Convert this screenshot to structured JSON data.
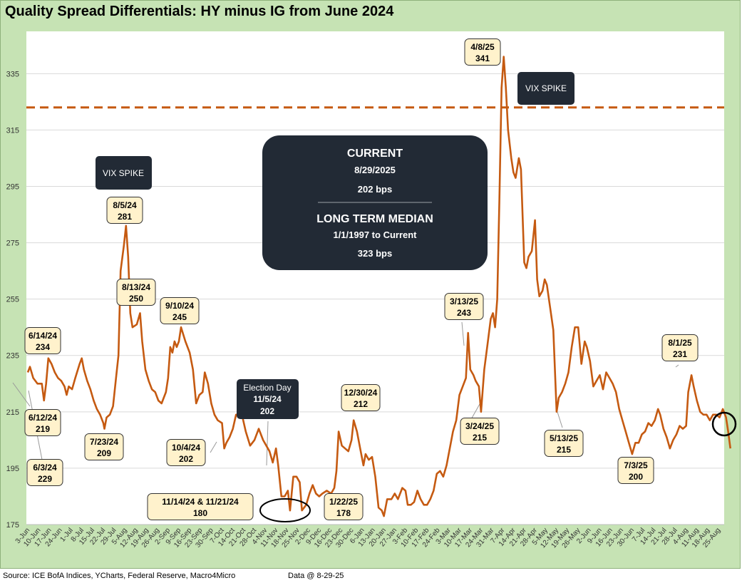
{
  "footer": {
    "source": "Source: ICE BofA Indices, YCharts, Federal Reserve, Macro4Micro",
    "data_as_of": "Data @ 8-29-25"
  },
  "colors": {
    "line": "#c55a11",
    "background": "#c6e3b4",
    "plot": "#ffffff",
    "dark_box": "#222a35",
    "callout_fill": "#fff2cc"
  },
  "chart_data": {
    "type": "line",
    "title": "Quality Spread Differentials: HY minus IG from June 2024",
    "ylabel": "",
    "xlabel": "",
    "ylim": [
      175,
      350
    ],
    "yticks": [
      175,
      195,
      215,
      235,
      255,
      275,
      295,
      315,
      335
    ],
    "grid": true,
    "x_tick_labels": [
      "3-Jun",
      "10-Jun",
      "17-Jun",
      "24-Jun",
      "1-Jul",
      "8-Jul",
      "15-Jul",
      "22-Jul",
      "29-Jul",
      "5-Aug",
      "12-Aug",
      "19-Aug",
      "26-Aug",
      "2-Sep",
      "9-Sep",
      "16-Sep",
      "23-Sep",
      "30-Sep",
      "7-Oct",
      "14-Oct",
      "21-Oct",
      "28-Oct",
      "4-Nov",
      "11-Nov",
      "18-Nov",
      "25-Nov",
      "2-Dec",
      "9-Dec",
      "16-Dec",
      "23-Dec",
      "30-Dec",
      "6-Jan",
      "13-Jan",
      "20-Jan",
      "27-Jan",
      "3-Feb",
      "10-Feb",
      "17-Feb",
      "24-Feb",
      "3-Mar",
      "10-Mar",
      "17-Mar",
      "24-Mar",
      "31-Mar",
      "7-Apr",
      "14-Apr",
      "21-Apr",
      "28-Apr",
      "5-May",
      "12-May",
      "19-May",
      "26-May",
      "2-Jun",
      "9-Jun",
      "16-Jun",
      "23-Jun",
      "30-Jun",
      "7-Jul",
      "14-Jul",
      "21-Jul",
      "28-Jul",
      "4-Aug",
      "11-Aug",
      "18-Aug",
      "25-Aug"
    ],
    "reference_line": {
      "name": "Long term median",
      "value": 323
    },
    "series": [
      {
        "name": "HY minus IG (bps)",
        "points": [
          [
            0,
            229
          ],
          [
            0.2,
            231
          ],
          [
            0.5,
            227
          ],
          [
            0.9,
            225
          ],
          [
            1.3,
            225
          ],
          [
            1.5,
            219
          ],
          [
            1.7,
            225
          ],
          [
            1.9,
            234
          ],
          [
            2.2,
            232
          ],
          [
            2.5,
            229
          ],
          [
            2.8,
            227
          ],
          [
            3.1,
            226
          ],
          [
            3.4,
            224
          ],
          [
            3.6,
            221
          ],
          [
            3.8,
            224
          ],
          [
            4.1,
            223
          ],
          [
            4.4,
            227
          ],
          [
            4.8,
            232
          ],
          [
            5.0,
            234
          ],
          [
            5.2,
            230
          ],
          [
            5.5,
            226
          ],
          [
            5.8,
            223
          ],
          [
            6.1,
            219
          ],
          [
            6.4,
            216
          ],
          [
            6.7,
            214
          ],
          [
            7.0,
            211
          ],
          [
            7.1,
            209
          ],
          [
            7.3,
            213
          ],
          [
            7.6,
            214
          ],
          [
            7.9,
            217
          ],
          [
            8.2,
            228
          ],
          [
            8.4,
            235
          ],
          [
            8.6,
            265
          ],
          [
            8.9,
            274
          ],
          [
            9.1,
            281
          ],
          [
            9.3,
            270
          ],
          [
            9.5,
            250
          ],
          [
            9.7,
            245
          ],
          [
            10.1,
            246
          ],
          [
            10.4,
            250
          ],
          [
            10.6,
            240
          ],
          [
            10.9,
            230
          ],
          [
            11.2,
            226
          ],
          [
            11.5,
            223
          ],
          [
            11.8,
            222
          ],
          [
            12.1,
            219
          ],
          [
            12.4,
            218
          ],
          [
            12.8,
            222
          ],
          [
            13.0,
            227
          ],
          [
            13.2,
            238
          ],
          [
            13.4,
            236
          ],
          [
            13.6,
            240
          ],
          [
            13.8,
            238
          ],
          [
            14.0,
            240
          ],
          [
            14.2,
            245
          ],
          [
            14.6,
            240
          ],
          [
            15.0,
            236
          ],
          [
            15.3,
            230
          ],
          [
            15.6,
            218
          ],
          [
            15.9,
            221
          ],
          [
            16.2,
            222
          ],
          [
            16.4,
            229
          ],
          [
            16.7,
            225
          ],
          [
            17.0,
            218
          ],
          [
            17.3,
            214
          ],
          [
            17.6,
            212
          ],
          [
            18.0,
            211
          ],
          [
            18.2,
            202
          ],
          [
            18.4,
            204
          ],
          [
            18.7,
            206
          ],
          [
            19.0,
            209
          ],
          [
            19.3,
            214
          ],
          [
            19.6,
            214
          ],
          [
            19.9,
            213
          ],
          [
            20.2,
            208
          ],
          [
            20.6,
            203
          ],
          [
            21.0,
            205
          ],
          [
            21.4,
            209
          ],
          [
            21.8,
            205
          ],
          [
            22.1,
            203
          ],
          [
            22.4,
            201
          ],
          [
            22.7,
            197
          ],
          [
            23.0,
            202
          ],
          [
            23.2,
            196
          ],
          [
            23.5,
            185
          ],
          [
            23.8,
            185
          ],
          [
            24.1,
            187
          ],
          [
            24.3,
            180
          ],
          [
            24.6,
            192
          ],
          [
            24.9,
            192
          ],
          [
            25.2,
            190
          ],
          [
            25.4,
            180
          ],
          [
            25.8,
            182
          ],
          [
            26.1,
            186
          ],
          [
            26.4,
            189
          ],
          [
            26.7,
            186
          ],
          [
            27.0,
            185
          ],
          [
            27.3,
            186
          ],
          [
            27.7,
            187
          ],
          [
            28.1,
            186
          ],
          [
            28.4,
            188
          ],
          [
            28.6,
            194
          ],
          [
            28.8,
            208
          ],
          [
            29.1,
            203
          ],
          [
            29.4,
            202
          ],
          [
            29.7,
            201
          ],
          [
            30.0,
            205
          ],
          [
            30.2,
            212
          ],
          [
            30.5,
            208
          ],
          [
            30.8,
            202
          ],
          [
            31.1,
            196
          ],
          [
            31.3,
            200
          ],
          [
            31.6,
            198
          ],
          [
            31.9,
            199
          ],
          [
            32.2,
            192
          ],
          [
            32.5,
            181
          ],
          [
            32.8,
            180
          ],
          [
            33.0,
            178
          ],
          [
            33.3,
            184
          ],
          [
            33.7,
            184
          ],
          [
            34.0,
            186
          ],
          [
            34.3,
            184
          ],
          [
            34.7,
            188
          ],
          [
            35.0,
            187
          ],
          [
            35.2,
            182
          ],
          [
            35.5,
            182
          ],
          [
            35.8,
            183
          ],
          [
            36.1,
            187
          ],
          [
            36.4,
            184
          ],
          [
            36.7,
            182
          ],
          [
            37.0,
            182
          ],
          [
            37.3,
            184
          ],
          [
            37.6,
            187
          ],
          [
            37.9,
            193
          ],
          [
            38.2,
            194
          ],
          [
            38.5,
            192
          ],
          [
            38.8,
            196
          ],
          [
            39.1,
            202
          ],
          [
            39.4,
            208
          ],
          [
            39.7,
            212
          ],
          [
            40.0,
            221
          ],
          [
            40.3,
            224
          ],
          [
            40.6,
            227
          ],
          [
            40.8,
            243
          ],
          [
            41.0,
            230
          ],
          [
            41.3,
            228
          ],
          [
            41.5,
            226
          ],
          [
            41.8,
            224
          ],
          [
            42.0,
            215
          ],
          [
            42.3,
            230
          ],
          [
            42.6,
            239
          ],
          [
            42.9,
            248
          ],
          [
            43.1,
            250
          ],
          [
            43.3,
            245
          ],
          [
            43.5,
            255
          ],
          [
            43.7,
            290
          ],
          [
            43.9,
            330
          ],
          [
            44.1,
            341
          ],
          [
            44.3,
            330
          ],
          [
            44.5,
            315
          ],
          [
            44.8,
            305
          ],
          [
            45.0,
            300
          ],
          [
            45.2,
            298
          ],
          [
            45.5,
            305
          ],
          [
            45.7,
            301
          ],
          [
            46.0,
            268
          ],
          [
            46.2,
            266
          ],
          [
            46.4,
            270
          ],
          [
            46.7,
            272
          ],
          [
            47.0,
            283
          ],
          [
            47.2,
            262
          ],
          [
            47.4,
            256
          ],
          [
            47.7,
            258
          ],
          [
            47.9,
            262
          ],
          [
            48.1,
            260
          ],
          [
            48.4,
            252
          ],
          [
            48.7,
            244
          ],
          [
            49.0,
            215
          ],
          [
            49.2,
            220
          ],
          [
            49.5,
            222
          ],
          [
            49.8,
            225
          ],
          [
            50.1,
            229
          ],
          [
            50.4,
            238
          ],
          [
            50.7,
            245
          ],
          [
            51.0,
            245
          ],
          [
            51.3,
            232
          ],
          [
            51.6,
            240
          ],
          [
            51.8,
            238
          ],
          [
            52.1,
            233
          ],
          [
            52.4,
            224
          ],
          [
            52.7,
            226
          ],
          [
            53.0,
            228
          ],
          [
            53.3,
            223
          ],
          [
            53.6,
            229
          ],
          [
            53.9,
            227
          ],
          [
            54.2,
            225
          ],
          [
            54.5,
            222
          ],
          [
            54.8,
            216
          ],
          [
            55.1,
            212
          ],
          [
            55.4,
            208
          ],
          [
            55.7,
            204
          ],
          [
            56.0,
            200
          ],
          [
            56.3,
            204
          ],
          [
            56.6,
            204
          ],
          [
            56.9,
            207
          ],
          [
            57.2,
            208
          ],
          [
            57.5,
            211
          ],
          [
            57.8,
            210
          ],
          [
            58.1,
            212
          ],
          [
            58.4,
            216
          ],
          [
            58.6,
            214
          ],
          [
            58.9,
            209
          ],
          [
            59.2,
            206
          ],
          [
            59.5,
            202
          ],
          [
            59.8,
            205
          ],
          [
            60.1,
            207
          ],
          [
            60.4,
            210
          ],
          [
            60.7,
            209
          ],
          [
            61.0,
            210
          ],
          [
            61.2,
            222
          ],
          [
            61.5,
            228
          ],
          [
            61.7,
            224
          ],
          [
            62.0,
            219
          ],
          [
            62.3,
            215
          ],
          [
            62.6,
            214
          ],
          [
            62.9,
            214
          ],
          [
            63.2,
            212
          ],
          [
            63.5,
            214
          ],
          [
            63.8,
            214
          ],
          [
            64.1,
            213
          ],
          [
            64.4,
            216
          ],
          [
            64.7,
            213
          ],
          [
            64.9,
            208
          ],
          [
            65.1,
            202
          ]
        ]
      }
    ],
    "annotations": [
      {
        "date": "6/14/24",
        "value": 234
      },
      {
        "date": "6/12/24",
        "value": 219
      },
      {
        "date": "6/3/24",
        "value": 229
      },
      {
        "date": "7/23/24",
        "value": 209
      },
      {
        "date": "8/5/24",
        "value": 281
      },
      {
        "date": "8/13/24",
        "value": 250
      },
      {
        "date": "9/10/24",
        "value": 245
      },
      {
        "date": "10/4/24",
        "value": 202
      },
      {
        "date": "11/14/24 & 11/21/24",
        "value": 180
      },
      {
        "date": "12/30/24",
        "value": 212
      },
      {
        "date": "1/22/25",
        "value": 178
      },
      {
        "date": "3/13/25",
        "value": 243
      },
      {
        "date": "3/24/25",
        "value": 215
      },
      {
        "date": "4/8/25",
        "value": 341
      },
      {
        "date": "5/13/25",
        "value": 215
      },
      {
        "date": "7/3/25",
        "value": 200
      },
      {
        "date": "8/1/25",
        "value": 231
      }
    ],
    "dark_labels": {
      "vix1": "VIX SPIKE",
      "vix2": "VIX SPIKE",
      "election_title": "Election Day",
      "election_date": "11/5/24",
      "election_value": 202
    },
    "summary_box": {
      "current_title": "CURRENT",
      "current_date": "8/29/2025",
      "current_value": "202 bps",
      "median_title": "LONG TERM MEDIAN",
      "median_range": "1/1/1997 to Current",
      "median_value": "323 bps"
    }
  }
}
